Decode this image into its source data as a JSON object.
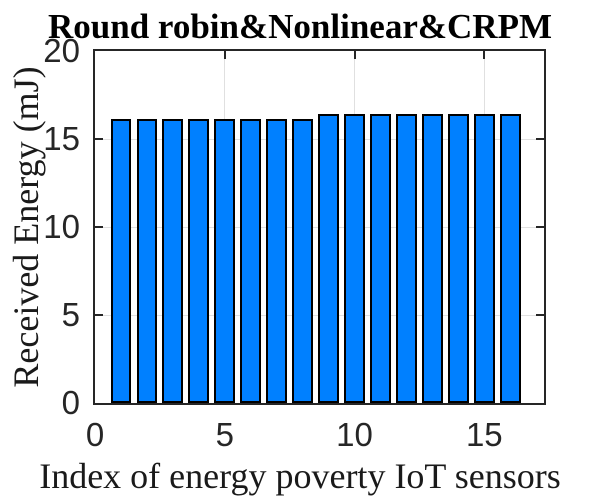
{
  "chart_data": {
    "type": "bar",
    "title": "Round robin&Nonlinear&CRPM",
    "xlabel": "Index of energy poverty IoT sensors",
    "ylabel": "Received Energy (mJ)",
    "categories": [
      1,
      2,
      3,
      4,
      5,
      6,
      7,
      8,
      9,
      10,
      11,
      12,
      13,
      14,
      15,
      16
    ],
    "values": [
      16.15,
      16.15,
      16.15,
      16.15,
      16.15,
      16.15,
      16.15,
      16.15,
      16.4,
      16.4,
      16.4,
      16.4,
      16.4,
      16.4,
      16.4,
      16.4
    ],
    "xlim": [
      0,
      17.3
    ],
    "ylim": [
      0,
      20
    ],
    "xticks": [
      0,
      5,
      10,
      15
    ],
    "yticks": [
      0,
      5,
      10,
      15,
      20
    ],
    "grid": true,
    "legend": null,
    "bar_width_units": 0.8,
    "colors": {
      "bar_fill": "#0080ff",
      "bar_edge": "#000000",
      "grid": "#e0e0e0",
      "axis": "#262626",
      "text": "#1a1a1a"
    }
  }
}
